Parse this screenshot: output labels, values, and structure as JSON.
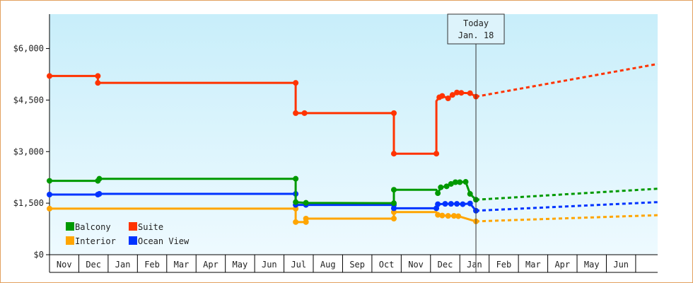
{
  "chart_data": {
    "type": "line",
    "title": "",
    "xlabel": "",
    "ylabel": "",
    "ylim": [
      0,
      7000
    ],
    "y_ticks": [
      {
        "value": 0,
        "label": "$0"
      },
      {
        "value": 1500,
        "label": "$1,500"
      },
      {
        "value": 3000,
        "label": "$3,000"
      },
      {
        "value": 4500,
        "label": "$4,500"
      },
      {
        "value": 6000,
        "label": "$6,000"
      }
    ],
    "x_range": [
      0,
      20.75
    ],
    "x_unit": "months from start of November",
    "x_tick_labels": [
      "Nov",
      "Dec",
      "Jan",
      "Feb",
      "Mar",
      "Apr",
      "May",
      "Jun",
      "Jul",
      "Aug",
      "Sep",
      "Oct",
      "Nov",
      "Dec",
      "Jan",
      "Feb",
      "Mar",
      "Apr",
      "May",
      "Jun"
    ],
    "today_marker": {
      "x": 14.55,
      "line1": "Today",
      "line2": "Jan. 18"
    },
    "background": {
      "top": "#c8eefa",
      "bottom": "#eefaff"
    },
    "legend_position": "bottom-left",
    "series": [
      {
        "name": "Suite",
        "color": "#ff3300",
        "step_points": [
          [
            0,
            5200
          ],
          [
            1.65,
            5200
          ],
          [
            1.65,
            5000
          ],
          [
            8.4,
            5000
          ],
          [
            8.4,
            4120
          ],
          [
            8.7,
            4120
          ],
          [
            11.75,
            4120
          ],
          [
            11.75,
            2940
          ],
          [
            13.2,
            2940
          ],
          [
            13.2,
            4470
          ],
          [
            13.3,
            4580
          ],
          [
            13.4,
            4620
          ],
          [
            13.6,
            4550
          ],
          [
            13.75,
            4650
          ],
          [
            13.9,
            4720
          ],
          [
            14.05,
            4710
          ],
          [
            14.35,
            4700
          ],
          [
            14.55,
            4600
          ]
        ],
        "markers": [
          [
            0,
            5200
          ],
          [
            1.65,
            5200
          ],
          [
            1.65,
            5000
          ],
          [
            8.4,
            5000
          ],
          [
            8.4,
            4120
          ],
          [
            8.7,
            4120
          ],
          [
            11.75,
            4120
          ],
          [
            11.75,
            2940
          ],
          [
            13.2,
            2940
          ],
          [
            13.3,
            4580
          ],
          [
            13.4,
            4620
          ],
          [
            13.6,
            4550
          ],
          [
            13.75,
            4650
          ],
          [
            13.9,
            4720
          ],
          [
            14.05,
            4710
          ],
          [
            14.35,
            4700
          ],
          [
            14.55,
            4600
          ]
        ],
        "projection": [
          [
            14.55,
            4600
          ],
          [
            20.75,
            5550
          ]
        ]
      },
      {
        "name": "Balcony",
        "color": "#009900",
        "step_points": [
          [
            0,
            2150
          ],
          [
            1.65,
            2150
          ],
          [
            1.7,
            2210
          ],
          [
            8.4,
            2210
          ],
          [
            8.4,
            1530
          ],
          [
            8.75,
            1510
          ],
          [
            11.75,
            1500
          ],
          [
            11.75,
            1890
          ],
          [
            13.2,
            1890
          ],
          [
            13.25,
            1790
          ],
          [
            13.35,
            1960
          ],
          [
            13.55,
            1990
          ],
          [
            13.7,
            2060
          ],
          [
            13.85,
            2110
          ],
          [
            14.0,
            2110
          ],
          [
            14.2,
            2120
          ],
          [
            14.35,
            1770
          ],
          [
            14.55,
            1600
          ]
        ],
        "markers": [
          [
            0,
            2150
          ],
          [
            1.65,
            2150
          ],
          [
            1.7,
            2210
          ],
          [
            8.4,
            2210
          ],
          [
            8.4,
            1530
          ],
          [
            8.75,
            1510
          ],
          [
            11.75,
            1500
          ],
          [
            11.75,
            1890
          ],
          [
            13.25,
            1790
          ],
          [
            13.35,
            1960
          ],
          [
            13.55,
            1990
          ],
          [
            13.7,
            2060
          ],
          [
            13.85,
            2110
          ],
          [
            14.0,
            2110
          ],
          [
            14.2,
            2120
          ],
          [
            14.35,
            1770
          ],
          [
            14.55,
            1600
          ]
        ],
        "projection": [
          [
            14.55,
            1600
          ],
          [
            20.75,
            1920
          ]
        ]
      },
      {
        "name": "Ocean View",
        "color": "#0033ff",
        "step_points": [
          [
            0,
            1750
          ],
          [
            1.65,
            1750
          ],
          [
            1.7,
            1770
          ],
          [
            8.4,
            1770
          ],
          [
            8.4,
            1450
          ],
          [
            8.75,
            1450
          ],
          [
            11.75,
            1450
          ],
          [
            11.75,
            1350
          ],
          [
            13.2,
            1350
          ],
          [
            13.25,
            1470
          ],
          [
            13.5,
            1480
          ],
          [
            13.7,
            1480
          ],
          [
            13.9,
            1480
          ],
          [
            14.1,
            1470
          ],
          [
            14.35,
            1490
          ],
          [
            14.55,
            1280
          ]
        ],
        "markers": [
          [
            0,
            1750
          ],
          [
            1.65,
            1750
          ],
          [
            1.7,
            1770
          ],
          [
            8.4,
            1770
          ],
          [
            8.4,
            1450
          ],
          [
            8.75,
            1450
          ],
          [
            11.75,
            1450
          ],
          [
            11.75,
            1350
          ],
          [
            13.2,
            1350
          ],
          [
            13.25,
            1470
          ],
          [
            13.5,
            1480
          ],
          [
            13.7,
            1480
          ],
          [
            13.9,
            1480
          ],
          [
            14.1,
            1470
          ],
          [
            14.35,
            1490
          ],
          [
            14.55,
            1280
          ]
        ],
        "projection": [
          [
            14.55,
            1280
          ],
          [
            20.75,
            1530
          ]
        ]
      },
      {
        "name": "Interior",
        "color": "#ffa500",
        "step_points": [
          [
            0,
            1340
          ],
          [
            8.4,
            1340
          ],
          [
            8.4,
            950
          ],
          [
            8.75,
            950
          ],
          [
            8.75,
            1050
          ],
          [
            11.75,
            1050
          ],
          [
            11.75,
            1240
          ],
          [
            13.2,
            1240
          ],
          [
            13.25,
            1160
          ],
          [
            13.4,
            1140
          ],
          [
            13.6,
            1130
          ],
          [
            13.8,
            1130
          ],
          [
            13.95,
            1120
          ],
          [
            14.55,
            970
          ]
        ],
        "markers": [
          [
            0,
            1340
          ],
          [
            8.4,
            1340
          ],
          [
            8.4,
            950
          ],
          [
            8.75,
            950
          ],
          [
            8.75,
            1050
          ],
          [
            11.75,
            1050
          ],
          [
            11.75,
            1240
          ],
          [
            13.25,
            1160
          ],
          [
            13.4,
            1140
          ],
          [
            13.6,
            1130
          ],
          [
            13.8,
            1130
          ],
          [
            13.95,
            1120
          ],
          [
            14.55,
            970
          ]
        ],
        "projection": [
          [
            14.55,
            970
          ],
          [
            20.75,
            1150
          ]
        ]
      }
    ],
    "legend": [
      {
        "label": "Balcony",
        "color": "#009900"
      },
      {
        "label": "Suite",
        "color": "#ff3300"
      },
      {
        "label": "Interior",
        "color": "#ffa500"
      },
      {
        "label": "Ocean View",
        "color": "#0033ff"
      }
    ]
  }
}
